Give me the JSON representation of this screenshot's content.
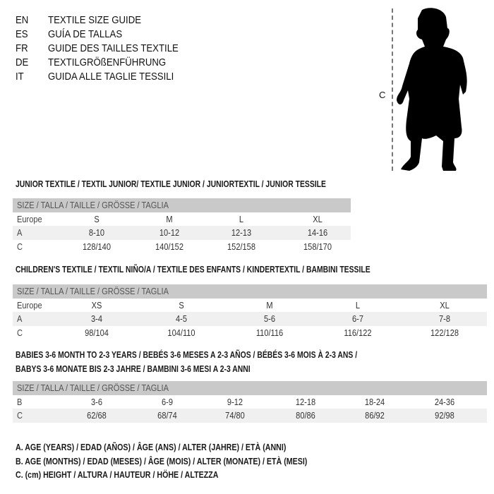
{
  "languages": [
    {
      "code": "EN",
      "title": "TEXTILE SIZE GUIDE"
    },
    {
      "code": "ES",
      "title": "GUÍA DE TALLAS"
    },
    {
      "code": "FR",
      "title": "GUIDE DES TAILLES TEXTILE"
    },
    {
      "code": "DE",
      "title": "TEXTILGRÖßENFÜHRUNG"
    },
    {
      "code": "IT",
      "title": "GUIDA ALLE TAGLIE TESSILI"
    }
  ],
  "figure": {
    "measure_label": "C",
    "icon": "child-silhouette"
  },
  "sections": [
    {
      "heading": "JUNIOR TEXTILE / TEXTIL JUNIOR/ TEXTILE JUNIOR / JUNIORTEXTIL / JUNIOR TESSILE",
      "header": "SIZE / TALLA / TAILLE / GRÖSSE / TAGLIA",
      "rows": [
        {
          "label": "Europe",
          "values": [
            "S",
            "M",
            "L",
            "XL"
          ]
        },
        {
          "label": "A",
          "values": [
            "8-10",
            "10-12",
            "12-13",
            "14-16"
          ]
        },
        {
          "label": "C",
          "values": [
            "128/140",
            "140/152",
            "152/158",
            "158/170"
          ]
        }
      ]
    },
    {
      "heading": "CHILDREN'S TEXTILE / TEXTIL NIÑO/A / TEXTILE DES ENFANTS / KINDERTEXTIL / BAMBINI TESSILE",
      "header": "SIZE / TALLA / TAILLE / GRÖSSE / TAGLIA",
      "rows": [
        {
          "label": "Europe",
          "values": [
            "XS",
            "S",
            "M",
            "L",
            "XL"
          ]
        },
        {
          "label": "A",
          "values": [
            "3-4",
            "4-5",
            "5-6",
            "6-7",
            "7-8"
          ]
        },
        {
          "label": "C",
          "values": [
            "98/104",
            "104/110",
            "110/116",
            "116/122",
            "122/128"
          ]
        }
      ]
    },
    {
      "heading": "BABIES 3-6 MONTH TO 2-3 YEARS / BEBÉS 3-6 MESES A 2-3 AÑOS / BÉBÉS 3-6 MOIS À 2-3 ANS /",
      "heading2": "BABYS 3-6 MONATE BIS 2-3 JAHRE / BAMBINI 3-6 MESI A 2-3 ANNI",
      "header": "SIZE / TALLA / TAILLE / GRÖSSE / TAGLIA",
      "rows": [
        {
          "label": "B",
          "values": [
            "3-6",
            "6-9",
            "9-12",
            "12-18",
            "18-24",
            "24-36"
          ]
        },
        {
          "label": "C",
          "values": [
            "62/68",
            "68/74",
            "74/80",
            "80/86",
            "86/92",
            "92/98"
          ]
        }
      ]
    }
  ],
  "legend": [
    "A. AGE (YEARS) / EDAD (AÑOS) / ÂGE (ANS) / ALTER (JAHRE) / ETÀ (ANNI)",
    "B. AGE (MONTHS) / EDAD (MESES) / ÂGE (MOIS) / ALTER (MONATE) / ETÀ (MESI)",
    "C. (cm) HEIGHT / ALTURA / HAUTEUR / HÖHE / ALTEZZA"
  ]
}
